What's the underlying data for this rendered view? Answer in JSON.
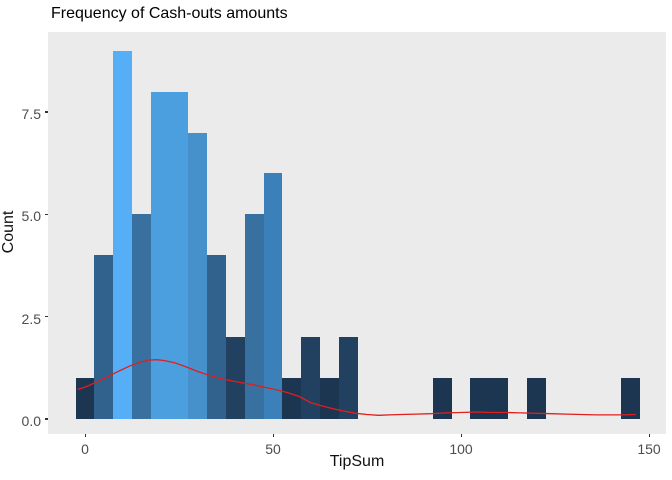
{
  "chart_data": {
    "type": "bar",
    "subtype": "histogram-with-density",
    "title": "Frequency of Cash-outs amounts",
    "xlabel": "TipSum",
    "ylabel": "Count",
    "x_ticks": [
      "0",
      "50",
      "100",
      "150"
    ],
    "x_tick_values": [
      0,
      50,
      100,
      150
    ],
    "y_ticks": [
      "0.0",
      "2.5",
      "5.0",
      "7.5"
    ],
    "y_tick_values": [
      0,
      2.5,
      5,
      7.5
    ],
    "xlim": [
      -9.8,
      154.1
    ],
    "ylim": [
      -0.37,
      9.46
    ],
    "grid": "off",
    "legend": "none",
    "panel_bg": "#EBEBEB",
    "binwidth": 5,
    "bars": [
      {
        "center": 0,
        "count": 1,
        "color": "#1C3550"
      },
      {
        "center": 5,
        "count": 4,
        "color": "#31618D"
      },
      {
        "center": 10,
        "count": 9,
        "color": "#56AFF6"
      },
      {
        "center": 15,
        "count": 5,
        "color": "#38709F"
      },
      {
        "center": 20,
        "count": 8,
        "color": "#4C9FDF"
      },
      {
        "center": 25,
        "count": 8,
        "color": "#4C9FDF"
      },
      {
        "center": 30,
        "count": 7,
        "color": "#4690CB"
      },
      {
        "center": 35,
        "count": 4,
        "color": "#31618D"
      },
      {
        "center": 40,
        "count": 2,
        "color": "#224160"
      },
      {
        "center": 45,
        "count": 5,
        "color": "#38709F"
      },
      {
        "center": 50,
        "count": 6,
        "color": "#3C80B9"
      },
      {
        "center": 55,
        "count": 1,
        "color": "#1C3550"
      },
      {
        "center": 60,
        "count": 2,
        "color": "#224160"
      },
      {
        "center": 65,
        "count": 1,
        "color": "#1C3550"
      },
      {
        "center": 70,
        "count": 2,
        "color": "#224160"
      },
      {
        "center": 95,
        "count": 1,
        "color": "#1C3550"
      },
      {
        "center": 105,
        "count": 1,
        "color": "#1C3550"
      },
      {
        "center": 110,
        "count": 1,
        "color": "#1C3550"
      },
      {
        "center": 120,
        "count": 1,
        "color": "#1C3550"
      },
      {
        "center": 145,
        "count": 1,
        "color": "#1C3550"
      }
    ],
    "fill_gradient": {
      "low_count_color": "#132B43",
      "high_count_color": "#56B1F7"
    },
    "density_curve": {
      "color": "#DF1F1F",
      "points": [
        [
          -2,
          0.72
        ],
        [
          0,
          0.78
        ],
        [
          3,
          0.9
        ],
        [
          6,
          1.03
        ],
        [
          9,
          1.17
        ],
        [
          12,
          1.3
        ],
        [
          15,
          1.4
        ],
        [
          17,
          1.44
        ],
        [
          19,
          1.45
        ],
        [
          21,
          1.43
        ],
        [
          24,
          1.37
        ],
        [
          27,
          1.27
        ],
        [
          30,
          1.16
        ],
        [
          33,
          1.07
        ],
        [
          36,
          0.99
        ],
        [
          39,
          0.93
        ],
        [
          42,
          0.88
        ],
        [
          45,
          0.83
        ],
        [
          48,
          0.77
        ],
        [
          51,
          0.71
        ],
        [
          54,
          0.64
        ],
        [
          57,
          0.55
        ],
        [
          60,
          0.4
        ],
        [
          63,
          0.32
        ],
        [
          66,
          0.25
        ],
        [
          69,
          0.19
        ],
        [
          72,
          0.14
        ],
        [
          75,
          0.11
        ],
        [
          78,
          0.09
        ],
        [
          81,
          0.1
        ],
        [
          84,
          0.11
        ],
        [
          88,
          0.12
        ],
        [
          92,
          0.13
        ],
        [
          96,
          0.15
        ],
        [
          100,
          0.16
        ],
        [
          104,
          0.17
        ],
        [
          108,
          0.16
        ],
        [
          112,
          0.16
        ],
        [
          116,
          0.15
        ],
        [
          120,
          0.14
        ],
        [
          124,
          0.13
        ],
        [
          128,
          0.12
        ],
        [
          132,
          0.11
        ],
        [
          136,
          0.1
        ],
        [
          140,
          0.1
        ],
        [
          143,
          0.1
        ],
        [
          146.5,
          0.11
        ]
      ]
    }
  }
}
